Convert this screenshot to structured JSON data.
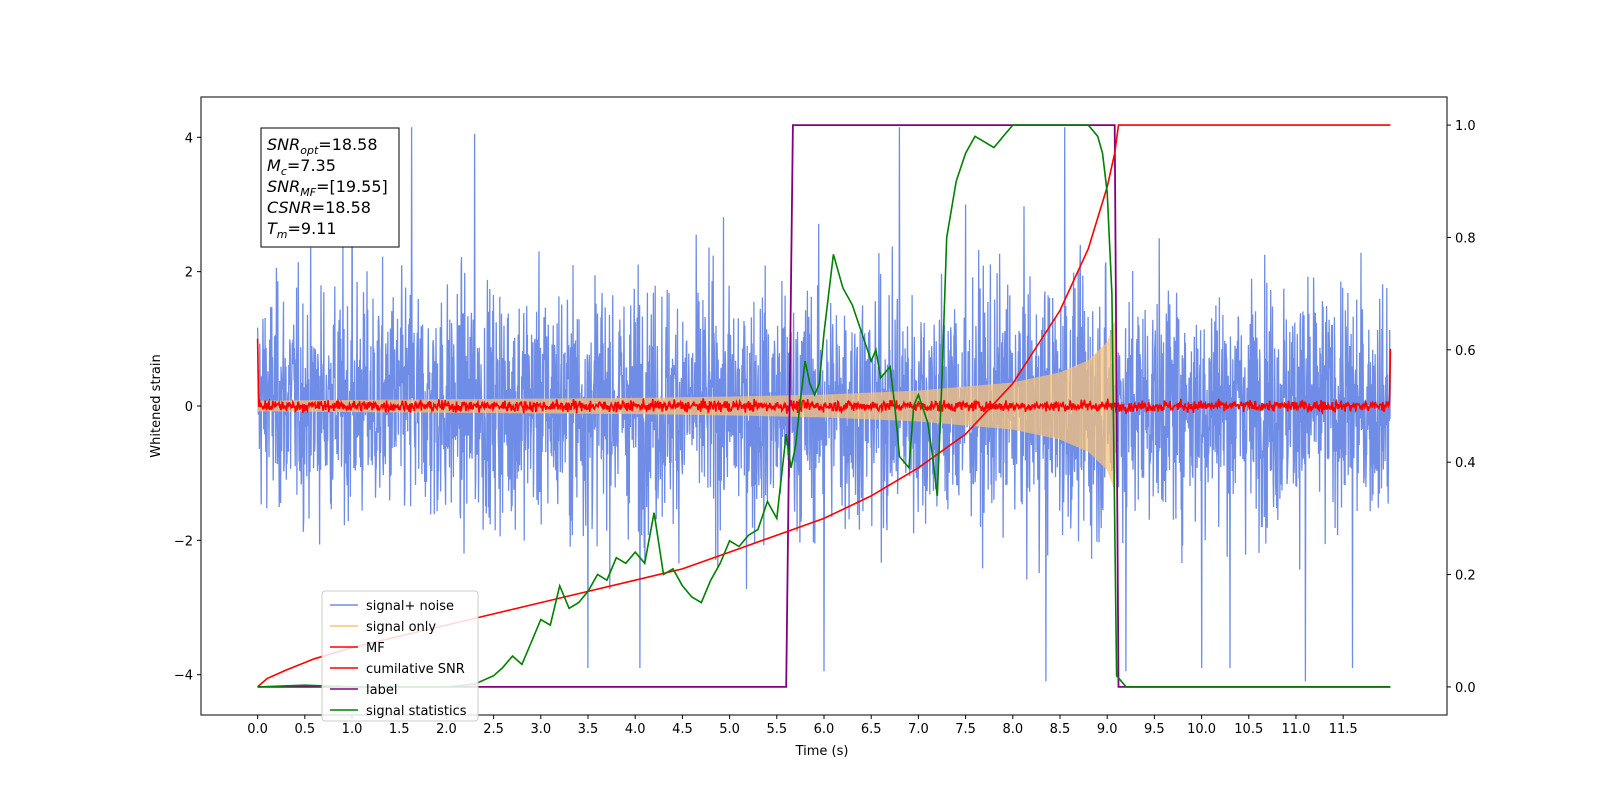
{
  "chart_data": {
    "type": "line",
    "title": "",
    "xlabel": "Time (s)",
    "ylabel": "Whitened strain",
    "ylabel_right": "",
    "xlim": [
      -0.6,
      12.6
    ],
    "ylim": [
      -4.6,
      4.6
    ],
    "ylim_right": [
      -0.05,
      1.05
    ],
    "x_ticks": [
      0.0,
      0.5,
      1.0,
      1.5,
      2.0,
      2.5,
      3.0,
      3.5,
      4.0,
      4.5,
      5.0,
      5.5,
      6.0,
      6.5,
      7.0,
      7.5,
      8.0,
      8.5,
      9.0,
      9.5,
      10.0,
      10.5,
      11.0,
      11.5
    ],
    "x_tick_labels": [
      "0.0",
      "0.5",
      "1.0",
      "1.5",
      "2.0",
      "2.5",
      "3.0",
      "3.5",
      "4.0",
      "4.5",
      "5.0",
      "5.5",
      "6.0",
      "6.5",
      "7.0",
      "7.5",
      "8.0",
      "8.5",
      "9.0",
      "9.5",
      "10.0",
      "10.5",
      "11.0",
      "11.5"
    ],
    "y_ticks": [
      -4,
      -2,
      0,
      2,
      4
    ],
    "y_tick_labels": [
      "−4",
      "−2",
      "0",
      "2",
      "4"
    ],
    "y_right_ticks": [
      0.0,
      0.2,
      0.4,
      0.6,
      0.8,
      1.0
    ],
    "y_right_tick_labels": [
      "0.0",
      "0.2",
      "0.4",
      "0.6",
      "0.8",
      "1.0"
    ],
    "grid": false,
    "legend_position": "lower-left",
    "stats_box": {
      "lines": [
        {
          "base": "SNR",
          "sub": "opt",
          "value": "=18.58"
        },
        {
          "base": "M",
          "sub": "c",
          "value": "=7.35"
        },
        {
          "base": "SNR",
          "sub": "MF",
          "value": "=[19.55]"
        },
        {
          "base": "CSNR",
          "sub": "",
          "value": "=18.58"
        },
        {
          "base": "T",
          "sub": "m",
          "value": "=9.11"
        }
      ]
    },
    "series": [
      {
        "name": "signal+ noise",
        "color": "#6f8de6",
        "axis": "left",
        "description_envelope": [
          [
            0.0,
            -2.6,
            2.8
          ],
          [
            1.0,
            -2.8,
            2.9
          ],
          [
            2.0,
            -2.9,
            2.9
          ],
          [
            3.0,
            -2.9,
            3.0
          ],
          [
            4.0,
            -2.9,
            3.0
          ],
          [
            5.0,
            -3.0,
            3.0
          ],
          [
            5.6,
            -3.1,
            3.0
          ],
          [
            6.0,
            -3.0,
            3.0
          ],
          [
            7.0,
            -3.0,
            3.0
          ],
          [
            8.0,
            -3.1,
            3.1
          ],
          [
            9.0,
            -3.3,
            3.2
          ],
          [
            9.1,
            -2.8,
            2.9
          ],
          [
            10.0,
            -2.9,
            3.0
          ],
          [
            11.0,
            -2.9,
            3.0
          ],
          [
            12.0,
            -2.8,
            2.7
          ]
        ],
        "spikes": [
          [
            1.0,
            4.1
          ],
          [
            1.63,
            4.15
          ],
          [
            2.3,
            4.05
          ],
          [
            6.8,
            4.15
          ],
          [
            7.5,
            3.0
          ],
          [
            8.55,
            4.15
          ],
          [
            3.5,
            -3.9
          ],
          [
            4.05,
            -3.9
          ],
          [
            6.0,
            -3.95
          ],
          [
            8.35,
            -4.1
          ],
          [
            9.2,
            -3.95
          ],
          [
            10.0,
            -3.9
          ],
          [
            10.3,
            -3.9
          ],
          [
            11.1,
            -4.1
          ],
          [
            11.6,
            -3.9
          ]
        ]
      },
      {
        "name": "signal only",
        "color": "#f5c27a",
        "axis": "left",
        "description_envelope": [
          [
            0.0,
            0.08
          ],
          [
            1.0,
            0.09
          ],
          [
            2.0,
            0.1
          ],
          [
            3.0,
            0.11
          ],
          [
            4.0,
            0.12
          ],
          [
            5.0,
            0.14
          ],
          [
            6.0,
            0.17
          ],
          [
            7.0,
            0.23
          ],
          [
            8.0,
            0.35
          ],
          [
            8.5,
            0.5
          ],
          [
            8.8,
            0.68
          ],
          [
            9.0,
            0.95
          ],
          [
            9.08,
            1.25
          ],
          [
            9.1,
            0.0
          ],
          [
            12.0,
            0.0
          ]
        ]
      },
      {
        "name": "MF",
        "color": "#ff0000",
        "axis": "left",
        "description_level": 0.0,
        "description_amplitude": 0.12,
        "start_value": 1.0,
        "end_value": 0.85
      },
      {
        "name": "cumilative SNR",
        "color": "#ff0000",
        "axis": "right",
        "x": [
          0.0,
          0.1,
          0.3,
          0.6,
          1.0,
          1.5,
          2.0,
          2.5,
          3.0,
          3.5,
          4.0,
          4.5,
          5.0,
          5.5,
          6.0,
          6.5,
          7.0,
          7.5,
          8.0,
          8.5,
          8.8,
          9.0,
          9.08,
          9.12,
          12.0
        ],
        "y": [
          0.0,
          0.015,
          0.03,
          0.05,
          0.07,
          0.09,
          0.11,
          0.13,
          0.15,
          0.17,
          0.19,
          0.21,
          0.24,
          0.27,
          0.3,
          0.34,
          0.39,
          0.45,
          0.54,
          0.67,
          0.78,
          0.89,
          0.95,
          1.0,
          1.0
        ]
      },
      {
        "name": "label",
        "color": "#800080",
        "axis": "right",
        "x": [
          0.0,
          5.6,
          5.67,
          9.08,
          9.12,
          12.0
        ],
        "y": [
          0.0,
          0.0,
          1.0,
          1.0,
          0.0,
          0.0
        ]
      },
      {
        "name": "signal statistics",
        "color": "#008000",
        "axis": "right",
        "x": [
          0.0,
          0.5,
          1.0,
          1.5,
          2.0,
          2.3,
          2.5,
          2.6,
          2.7,
          2.8,
          2.9,
          3.0,
          3.1,
          3.2,
          3.3,
          3.4,
          3.5,
          3.6,
          3.7,
          3.8,
          3.9,
          4.0,
          4.1,
          4.2,
          4.3,
          4.4,
          4.5,
          4.6,
          4.7,
          4.8,
          4.9,
          5.0,
          5.1,
          5.2,
          5.3,
          5.4,
          5.5,
          5.6,
          5.65,
          5.7,
          5.75,
          5.8,
          5.85,
          5.9,
          5.95,
          6.0,
          6.1,
          6.2,
          6.3,
          6.4,
          6.5,
          6.55,
          6.6,
          6.7,
          6.75,
          6.8,
          6.9,
          6.95,
          7.0,
          7.1,
          7.15,
          7.2,
          7.25,
          7.3,
          7.4,
          7.5,
          7.6,
          7.7,
          7.8,
          7.9,
          8.0,
          8.1,
          8.3,
          8.5,
          8.7,
          8.8,
          8.9,
          8.95,
          9.0,
          9.05,
          9.1,
          9.2,
          9.3,
          10.0,
          11.0,
          11.5,
          12.0
        ],
        "y": [
          0.0,
          0.003,
          0.0,
          0.0,
          0.0,
          0.005,
          0.02,
          0.035,
          0.055,
          0.04,
          0.08,
          0.12,
          0.11,
          0.18,
          0.14,
          0.15,
          0.17,
          0.2,
          0.19,
          0.23,
          0.22,
          0.24,
          0.22,
          0.31,
          0.2,
          0.21,
          0.18,
          0.16,
          0.15,
          0.19,
          0.22,
          0.26,
          0.25,
          0.27,
          0.28,
          0.33,
          0.3,
          0.45,
          0.39,
          0.43,
          0.51,
          0.58,
          0.54,
          0.52,
          0.54,
          0.63,
          0.77,
          0.71,
          0.68,
          0.63,
          0.58,
          0.6,
          0.55,
          0.57,
          0.5,
          0.41,
          0.39,
          0.5,
          0.52,
          0.47,
          0.41,
          0.34,
          0.55,
          0.8,
          0.9,
          0.95,
          0.98,
          0.97,
          0.96,
          0.98,
          1.0,
          1.0,
          1.0,
          1.0,
          1.0,
          1.0,
          0.98,
          0.95,
          0.88,
          0.7,
          0.02,
          0.0,
          0.0,
          0.0,
          0.0,
          0.0,
          0.0
        ]
      }
    ]
  }
}
